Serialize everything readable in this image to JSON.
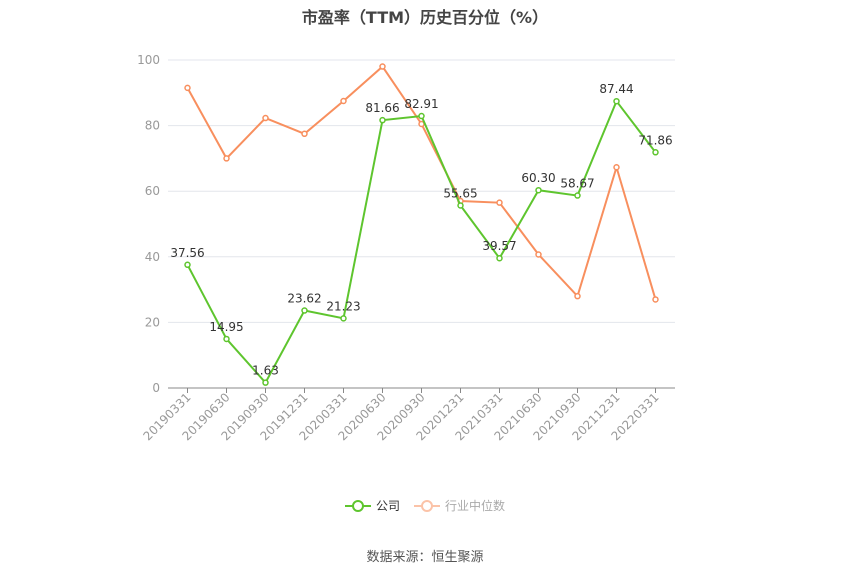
{
  "chart_data": {
    "type": "line",
    "title": "市盈率（TTM）历史百分位（%）",
    "categories": [
      "20190331",
      "20190630",
      "20190930",
      "20191231",
      "20200331",
      "20200630",
      "20200930",
      "20201231",
      "20210331",
      "20210630",
      "20210930",
      "20211231",
      "20220331"
    ],
    "ylim": [
      0,
      100
    ],
    "yticks": [
      0,
      20,
      40,
      60,
      80,
      100
    ],
    "grid": true,
    "legend_position": "bottom",
    "series": [
      {
        "name": "公司",
        "color": "#5ec52e",
        "values": [
          37.56,
          14.95,
          1.63,
          23.62,
          21.23,
          81.66,
          82.91,
          55.65,
          39.57,
          60.3,
          58.67,
          87.44,
          71.86
        ],
        "labels": [
          "37.56",
          "14.95",
          "1.63",
          "23.62",
          "21.23",
          "81.66",
          "82.91",
          "55.65",
          "39.57",
          "60.30",
          "58.67",
          "87.44",
          "71.86"
        ]
      },
      {
        "name": "行业中位数",
        "color": "#f88f5e",
        "values": [
          91.5,
          70.0,
          82.3,
          77.5,
          87.5,
          98.0,
          80.5,
          57.0,
          56.5,
          40.7,
          28.0,
          67.3,
          27.0
        ]
      }
    ]
  },
  "source": "数据来源：恒生聚源"
}
